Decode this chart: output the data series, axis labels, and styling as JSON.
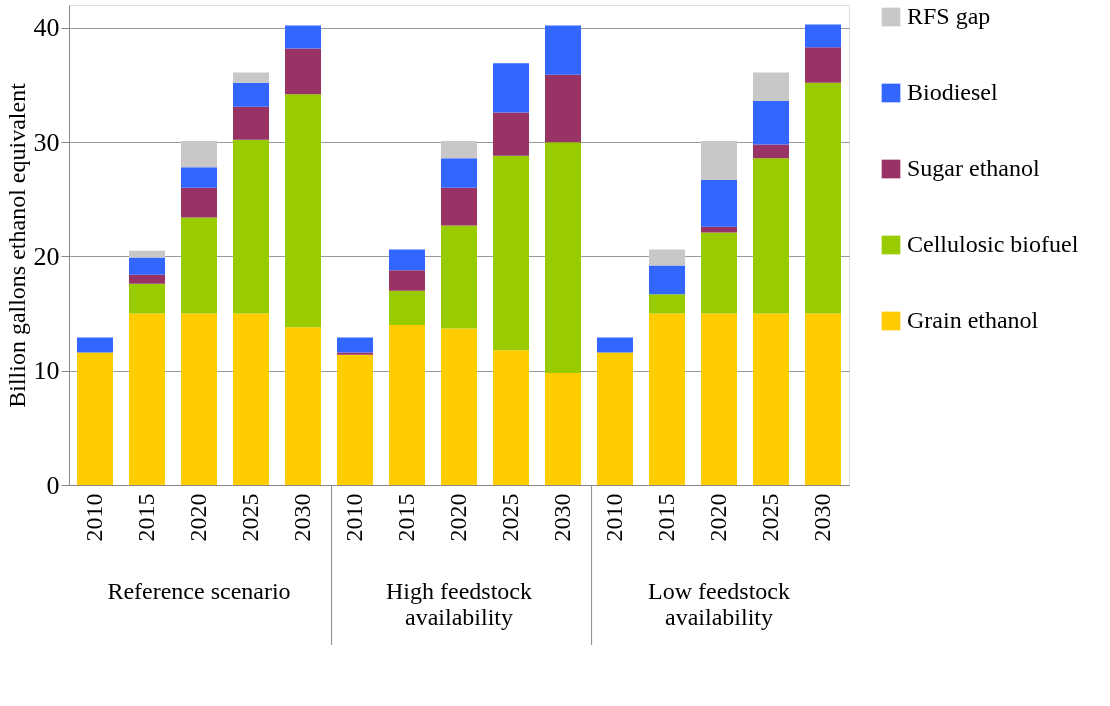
{
  "chart_data": {
    "type": "bar",
    "stacked": true,
    "ylabel": "Billion gallons ethanol equivalent",
    "categories": [
      "2010",
      "2015",
      "2020",
      "2025",
      "2030",
      "2010",
      "2015",
      "2020",
      "2025",
      "2030",
      "2010",
      "2015",
      "2020",
      "2025",
      "2030"
    ],
    "annotations": [
      "Reference scenario",
      "High feedstock availability",
      "Low feedstock availability"
    ],
    "series": [
      {
        "name": "Grain ethanol",
        "color": "#ffcc00",
        "values": [
          11.6,
          15.0,
          15.0,
          15.0,
          13.8,
          11.4,
          14.0,
          13.7,
          11.8,
          9.8,
          11.6,
          15.0,
          15.0,
          15.0,
          15.0
        ]
      },
      {
        "name": "Cellulosic biofuel",
        "color": "#99cc00",
        "values": [
          null,
          2.6,
          8.4,
          15.2,
          20.4,
          null,
          3.0,
          9.0,
          17.0,
          20.2,
          null,
          1.7,
          7.1,
          13.6,
          20.2
        ]
      },
      {
        "name": "Sugar ethanol",
        "color": "#993366",
        "values": [
          null,
          0.8,
          2.6,
          2.9,
          4.0,
          0.2,
          1.8,
          3.3,
          3.8,
          5.9,
          null,
          null,
          0.5,
          1.2,
          3.1
        ]
      },
      {
        "name": "Biodiesel",
        "color": "#3366ff",
        "values": [
          1.3,
          1.5,
          1.8,
          2.1,
          2.0,
          1.3,
          1.8,
          2.6,
          4.3,
          4.3,
          1.3,
          2.5,
          4.1,
          3.8,
          2.0
        ]
      },
      {
        "name": "RFS gap",
        "color": "#c8c8c8",
        "values": [
          null,
          0.6,
          2.3,
          0.9,
          null,
          null,
          null,
          1.5,
          null,
          null,
          null,
          1.4,
          3.4,
          2.5,
          null
        ]
      }
    ],
    "ylim": [
      0,
      42
    ],
    "yticks": [
      0,
      10,
      20,
      30,
      40
    ],
    "grid": "y",
    "legend": "right"
  }
}
